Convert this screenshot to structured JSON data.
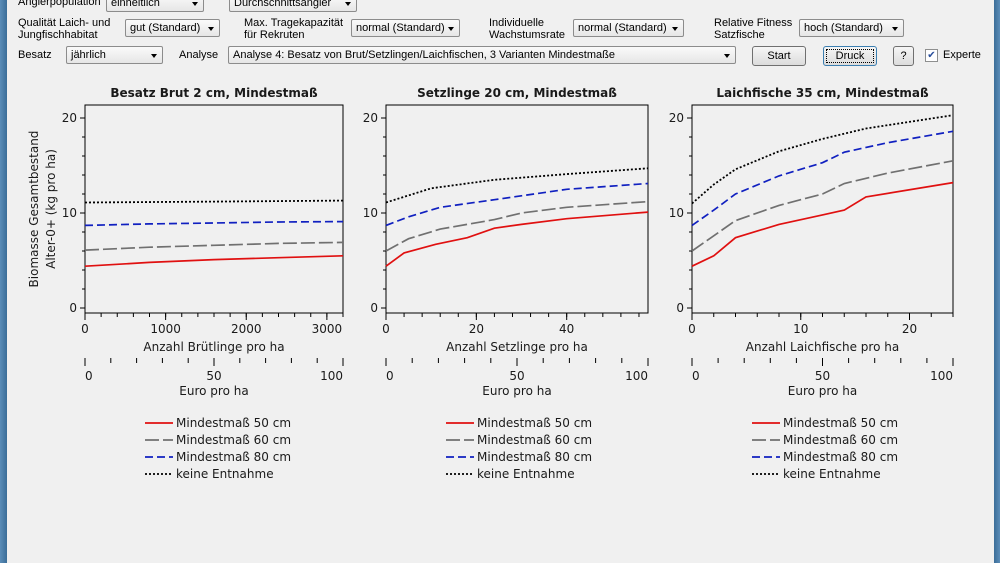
{
  "controls": {
    "angler_population_label": "Anglerpopulation",
    "angler_population_value": "einheitlich",
    "angler_type_value": "Durchschnittsangler",
    "habitat_label": "Qualität Laich- und Jungfischhabitat",
    "habitat_value": "gut (Standard)",
    "capacity_label": "Max. Tragekapazität für Rekruten",
    "capacity_value": "normal (Standard)",
    "growth_label": "Individuelle Wachstumsrate",
    "growth_value": "normal (Standard)",
    "fitness_label": "Relative Fitness Satzfische",
    "fitness_value": "hoch (Standard)",
    "besatz_label": "Besatz",
    "besatz_value": "jährlich",
    "analyse_label": "Analyse",
    "analyse_value": "Analyse 4: Besatz von Brut/Setzlingen/Laichfischen, 3 Varianten Mindestmaße",
    "start_label": "Start",
    "print_label": "Druck",
    "help_label": "?",
    "expert_label": "Experte",
    "expert_checked": true
  },
  "chart_data": [
    {
      "type": "line",
      "title": "Besatz Brut  2 cm, Mindestmaß",
      "xlabel": "Anzahl Brütlinge pro ha",
      "x2label": "Euro pro ha",
      "ylabel": "Biomasse Gesamtbestand",
      "ylabel2": "Alter-0+ (kg pro ha)",
      "xlim": [
        0,
        3200
      ],
      "xticks": [
        0,
        1000,
        2000,
        3000
      ],
      "ylim": [
        0,
        21
      ],
      "yticks": [
        0,
        10,
        20
      ],
      "x2lim": [
        0,
        100
      ],
      "x2ticks": [
        0,
        50,
        100
      ],
      "series": [
        {
          "name": "Mindestmaß 50 cm",
          "color": "#e01010",
          "dash": "",
          "x": [
            0,
            800,
            1600,
            2400,
            3200
          ],
          "y": [
            4.4,
            4.8,
            5.1,
            5.3,
            5.5
          ]
        },
        {
          "name": "Mindestmaß 60 cm",
          "color": "#707070",
          "dash": "14,4",
          "x": [
            0,
            800,
            1600,
            2400,
            3200
          ],
          "y": [
            6.1,
            6.4,
            6.6,
            6.8,
            6.9
          ]
        },
        {
          "name": "Mindestmaß 80 cm",
          "color": "#1020c0",
          "dash": "8,4",
          "x": [
            0,
            800,
            1600,
            2400,
            3200
          ],
          "y": [
            8.7,
            8.85,
            8.95,
            9.05,
            9.1
          ]
        },
        {
          "name": "keine Entnahme",
          "color": "#000000",
          "dash": "2,2",
          "x": [
            0,
            1600,
            3200
          ],
          "y": [
            11.1,
            11.2,
            11.3
          ]
        }
      ]
    },
    {
      "type": "line",
      "title": "Setzlinge 20 cm, Mindestmaß",
      "xlabel": "Anzahl Setzlinge pro ha",
      "x2label": "Euro pro ha",
      "xlim": [
        0,
        58
      ],
      "xticks": [
        0,
        20,
        40
      ],
      "ylim": [
        0,
        21
      ],
      "yticks": [
        0,
        10,
        20
      ],
      "x2lim": [
        0,
        100
      ],
      "x2ticks": [
        0,
        50,
        100
      ],
      "series": [
        {
          "name": "Mindestmaß 50 cm",
          "color": "#e01010",
          "dash": "",
          "x": [
            0,
            4,
            11,
            18,
            24,
            30,
            40,
            58
          ],
          "y": [
            4.4,
            5.8,
            6.7,
            7.4,
            8.4,
            8.8,
            9.4,
            10.1
          ]
        },
        {
          "name": "Mindestmaß 60 cm",
          "color": "#707070",
          "dash": "14,4",
          "x": [
            0,
            5,
            12,
            24,
            30,
            40,
            58
          ],
          "y": [
            6,
            7.3,
            8.3,
            9.3,
            10,
            10.6,
            11.2
          ]
        },
        {
          "name": "Mindestmaß 80 cm",
          "color": "#1020c0",
          "dash": "8,4",
          "x": [
            0,
            5,
            12,
            24,
            40,
            58
          ],
          "y": [
            8.7,
            9.6,
            10.6,
            11.4,
            12.5,
            13.1
          ]
        },
        {
          "name": "keine Entnahme",
          "color": "#000000",
          "dash": "2,2",
          "x": [
            0,
            10,
            24,
            40,
            58
          ],
          "y": [
            11.1,
            12.6,
            13.5,
            14.1,
            14.7
          ]
        }
      ]
    },
    {
      "type": "line",
      "title": "Laichfische 35 cm, Mindestmaß",
      "xlabel": "Anzahl Laichfische pro ha",
      "x2label": "Euro pro ha",
      "xlim": [
        0,
        24
      ],
      "xticks": [
        0,
        10,
        20
      ],
      "ylim": [
        0,
        21
      ],
      "yticks": [
        0,
        10,
        20
      ],
      "x2lim": [
        0,
        100
      ],
      "x2ticks": [
        0,
        50,
        100
      ],
      "series": [
        {
          "name": "Mindestmaß 50 cm",
          "color": "#e01010",
          "dash": "",
          "x": [
            0,
            2,
            4,
            8,
            12,
            14,
            16,
            24
          ],
          "y": [
            4.4,
            5.5,
            7.4,
            8.8,
            9.8,
            10.3,
            11.7,
            13.2
          ]
        },
        {
          "name": "Mindestmaß 60 cm",
          "color": "#707070",
          "dash": "14,4",
          "x": [
            0,
            4,
            8,
            12,
            14,
            18,
            24
          ],
          "y": [
            6,
            9.2,
            10.8,
            12,
            13.1,
            14.2,
            15.5
          ]
        },
        {
          "name": "Mindestmaß 80 cm",
          "color": "#1020c0",
          "dash": "8,4",
          "x": [
            0,
            2,
            4,
            8,
            12,
            14,
            18,
            24
          ],
          "y": [
            8.7,
            10.3,
            12,
            13.9,
            15.3,
            16.4,
            17.4,
            18.6
          ]
        },
        {
          "name": "keine Entnahme",
          "color": "#000000",
          "dash": "2,2",
          "x": [
            0,
            2,
            4,
            8,
            12,
            16,
            24
          ],
          "y": [
            11,
            13,
            14.6,
            16.5,
            17.8,
            18.9,
            20.3
          ]
        }
      ]
    }
  ]
}
